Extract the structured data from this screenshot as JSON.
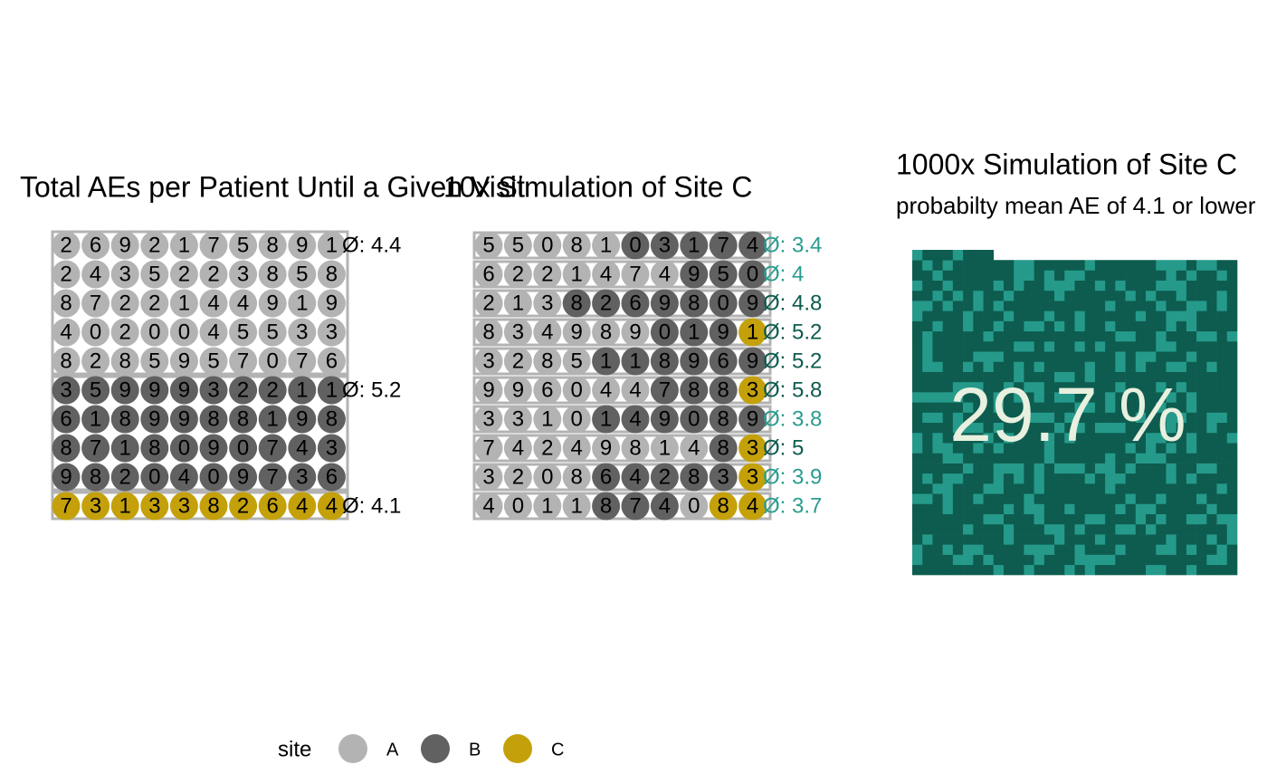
{
  "legend": {
    "title": "site",
    "items": [
      {
        "name": "A",
        "color": "#b3b3b3"
      },
      {
        "name": "B",
        "color": "#616161"
      },
      {
        "name": "C",
        "color": "#c4a10a"
      }
    ]
  },
  "panel1": {
    "title": "Total AEs per Patient Until a Given Visit",
    "groups": [
      {
        "site": 0,
        "rows": [
          [
            2,
            6,
            9,
            2,
            1,
            7,
            5,
            8,
            9,
            1
          ],
          [
            2,
            4,
            3,
            5,
            2,
            2,
            3,
            8,
            5,
            8
          ],
          [
            8,
            7,
            2,
            2,
            1,
            4,
            4,
            9,
            1,
            9
          ],
          [
            4,
            0,
            2,
            0,
            0,
            4,
            5,
            5,
            3,
            3
          ],
          [
            8,
            2,
            8,
            5,
            9,
            5,
            7,
            0,
            7,
            6
          ]
        ],
        "mean": {
          "value": 4.4,
          "label": "Ø: 4.4"
        }
      },
      {
        "site": 1,
        "rows": [
          [
            3,
            5,
            9,
            9,
            9,
            3,
            2,
            2,
            1,
            1
          ],
          [
            6,
            1,
            8,
            9,
            9,
            8,
            8,
            1,
            9,
            8
          ],
          [
            8,
            7,
            1,
            8,
            0,
            9,
            0,
            7,
            4,
            3
          ],
          [
            9,
            8,
            2,
            0,
            4,
            0,
            9,
            7,
            3,
            6
          ]
        ],
        "mean": {
          "value": 5.2,
          "label": "Ø: 5.2"
        }
      },
      {
        "site": 2,
        "rows": [
          [
            7,
            3,
            1,
            3,
            3,
            8,
            2,
            6,
            4,
            4
          ]
        ],
        "mean": {
          "value": 4.1,
          "label": "Ø: 4.1"
        }
      }
    ]
  },
  "panel2": {
    "title": "10x Simulation of Site C",
    "rows": [
      {
        "values": [
          5,
          5,
          0,
          8,
          1,
          0,
          3,
          1,
          7,
          4
        ],
        "sites": [
          0,
          0,
          0,
          0,
          0,
          1,
          1,
          1,
          1,
          1
        ],
        "mean": {
          "value": 3.4,
          "label": "Ø: 3.4"
        },
        "color": "#2a9d8f"
      },
      {
        "values": [
          6,
          2,
          2,
          1,
          4,
          7,
          4,
          9,
          5,
          0
        ],
        "sites": [
          0,
          0,
          0,
          0,
          0,
          0,
          0,
          1,
          1,
          1
        ],
        "mean": {
          "value": 4,
          "label": "Ø: 4"
        },
        "color": "#2a9d8f"
      },
      {
        "values": [
          2,
          1,
          3,
          8,
          2,
          6,
          9,
          8,
          0,
          9
        ],
        "sites": [
          0,
          0,
          0,
          1,
          1,
          1,
          1,
          1,
          1,
          1
        ],
        "mean": {
          "value": 4.8,
          "label": "Ø: 4.8"
        },
        "color": "#0d5c4f"
      },
      {
        "values": [
          8,
          3,
          4,
          9,
          8,
          9,
          0,
          1,
          9,
          1
        ],
        "sites": [
          0,
          0,
          0,
          0,
          0,
          0,
          1,
          1,
          1,
          2
        ],
        "mean": {
          "value": 5.2,
          "label": "Ø: 5.2"
        },
        "color": "#0d5c4f"
      },
      {
        "values": [
          3,
          2,
          8,
          5,
          1,
          1,
          8,
          9,
          6,
          9
        ],
        "sites": [
          0,
          0,
          0,
          0,
          1,
          1,
          1,
          1,
          1,
          1
        ],
        "mean": {
          "value": 5.2,
          "label": "Ø: 5.2"
        },
        "color": "#0d5c4f"
      },
      {
        "values": [
          9,
          9,
          6,
          0,
          4,
          4,
          7,
          8,
          8,
          3
        ],
        "sites": [
          0,
          0,
          0,
          0,
          0,
          0,
          1,
          1,
          1,
          2
        ],
        "mean": {
          "value": 5.8,
          "label": "Ø: 5.8"
        },
        "color": "#0d5c4f"
      },
      {
        "values": [
          3,
          3,
          1,
          0,
          1,
          4,
          9,
          0,
          8,
          9
        ],
        "sites": [
          0,
          0,
          0,
          0,
          1,
          1,
          1,
          1,
          1,
          1
        ],
        "mean": {
          "value": 3.8,
          "label": "Ø: 3.8"
        },
        "color": "#2a9d8f"
      },
      {
        "values": [
          7,
          4,
          2,
          4,
          9,
          8,
          1,
          4,
          8,
          3
        ],
        "sites": [
          0,
          0,
          0,
          0,
          0,
          0,
          0,
          0,
          1,
          2
        ],
        "mean": {
          "value": 5,
          "label": "Ø: 5"
        },
        "color": "#0d5c4f"
      },
      {
        "values": [
          3,
          2,
          0,
          8,
          6,
          4,
          2,
          8,
          3,
          3
        ],
        "sites": [
          0,
          0,
          0,
          0,
          1,
          1,
          1,
          1,
          1,
          2
        ],
        "mean": {
          "value": 3.9,
          "label": "Ø: 3.9"
        },
        "color": "#2a9d8f"
      },
      {
        "values": [
          4,
          0,
          1,
          1,
          8,
          7,
          4,
          0,
          8,
          4
        ],
        "sites": [
          0,
          0,
          0,
          0,
          1,
          1,
          1,
          0,
          2,
          2
        ],
        "mean": {
          "value": 3.7,
          "label": "Ø: 3.7"
        },
        "color": "#2a9d8f"
      }
    ]
  },
  "panel3": {
    "title": "1000x Simulation of Site C",
    "subtitle": "probabilty mean AE of 4.1 or lower",
    "count": 1000,
    "share": {
      "value": 29.7,
      "label": "29.7 %"
    },
    "colors": {
      "hit": "#259a8a",
      "miss": "#0d5c4f",
      "text": "#e8f0e0"
    }
  }
}
